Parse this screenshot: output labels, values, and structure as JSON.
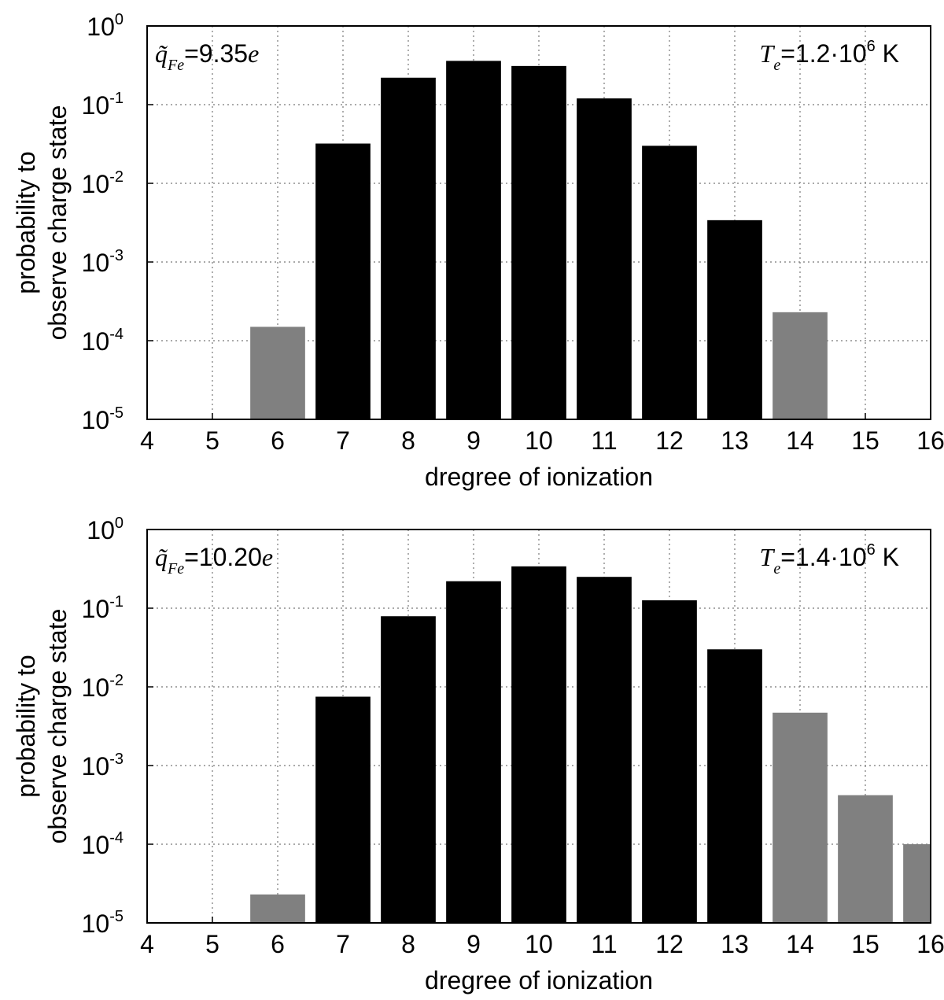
{
  "chart_data": [
    {
      "type": "bar",
      "x": [
        6,
        7,
        8,
        9,
        10,
        11,
        12,
        13,
        14
      ],
      "values": [
        0.00015,
        0.032,
        0.22,
        0.36,
        0.31,
        0.12,
        0.03,
        0.0034,
        0.00023
      ],
      "colors": [
        "#808080",
        "#000000",
        "#000000",
        "#000000",
        "#000000",
        "#000000",
        "#000000",
        "#000000",
        "#808080"
      ],
      "xlim": [
        4,
        16
      ],
      "ylim": [
        1e-05,
        1
      ],
      "log_y": true,
      "grid": true,
      "xticks": [
        4,
        5,
        6,
        7,
        8,
        9,
        10,
        11,
        12,
        13,
        14,
        15,
        16
      ],
      "yticks": [
        {
          "value": 1e-05,
          "label": "10",
          "exponent": "-5"
        },
        {
          "value": 0.0001,
          "label": "10",
          "exponent": "-4"
        },
        {
          "value": 0.001,
          "label": "10",
          "exponent": "-3"
        },
        {
          "value": 0.01,
          "label": "10",
          "exponent": "-2"
        },
        {
          "value": 0.1,
          "label": "10",
          "exponent": "-1"
        },
        {
          "value": 1,
          "label": "10",
          "exponent": "0"
        }
      ],
      "xlabel": "dregree of ionization",
      "ylabel": [
        "probability to",
        "observe charge state"
      ],
      "annotations": [
        [
          {
            "text": "q̃",
            "style": "italic"
          },
          {
            "text": "Fe",
            "style": "sub"
          },
          {
            "text": "=9.35",
            "style": "normal"
          },
          {
            "text": "e",
            "style": "italic"
          }
        ],
        [
          {
            "text": "T",
            "style": "italic"
          },
          {
            "text": "e",
            "style": "sub"
          },
          {
            "text": "=1.2·10",
            "style": "normal"
          },
          {
            "text": "6",
            "style": "sup"
          },
          {
            "text": " K",
            "style": "normal"
          }
        ]
      ]
    },
    {
      "type": "bar",
      "x": [
        6,
        7,
        8,
        9,
        10,
        11,
        12,
        13,
        14,
        15,
        16
      ],
      "values": [
        2.3e-05,
        0.0075,
        0.079,
        0.22,
        0.34,
        0.25,
        0.126,
        0.03,
        0.0047,
        0.00042,
        0.0001
      ],
      "colors": [
        "#808080",
        "#000000",
        "#000000",
        "#000000",
        "#000000",
        "#000000",
        "#000000",
        "#000000",
        "#808080",
        "#808080",
        "#808080"
      ],
      "xlim": [
        4,
        16
      ],
      "ylim": [
        1e-05,
        1
      ],
      "log_y": true,
      "grid": true,
      "xticks": [
        4,
        5,
        6,
        7,
        8,
        9,
        10,
        11,
        12,
        13,
        14,
        15,
        16
      ],
      "yticks": [
        {
          "value": 1e-05,
          "label": "10",
          "exponent": "-5"
        },
        {
          "value": 0.0001,
          "label": "10",
          "exponent": "-4"
        },
        {
          "value": 0.001,
          "label": "10",
          "exponent": "-3"
        },
        {
          "value": 0.01,
          "label": "10",
          "exponent": "-2"
        },
        {
          "value": 0.1,
          "label": "10",
          "exponent": "-1"
        },
        {
          "value": 1,
          "label": "10",
          "exponent": "0"
        }
      ],
      "xlabel": "dregree of ionization",
      "ylabel": [
        "probability to",
        "observe charge state"
      ],
      "annotations": [
        [
          {
            "text": "q̃",
            "style": "italic"
          },
          {
            "text": "Fe",
            "style": "sub"
          },
          {
            "text": "=10.20",
            "style": "normal"
          },
          {
            "text": "e",
            "style": "italic"
          }
        ],
        [
          {
            "text": "T",
            "style": "italic"
          },
          {
            "text": "e",
            "style": "sub"
          },
          {
            "text": "=1.4·10",
            "style": "normal"
          },
          {
            "text": "6",
            "style": "sup"
          },
          {
            "text": " K",
            "style": "normal"
          }
        ]
      ]
    }
  ]
}
